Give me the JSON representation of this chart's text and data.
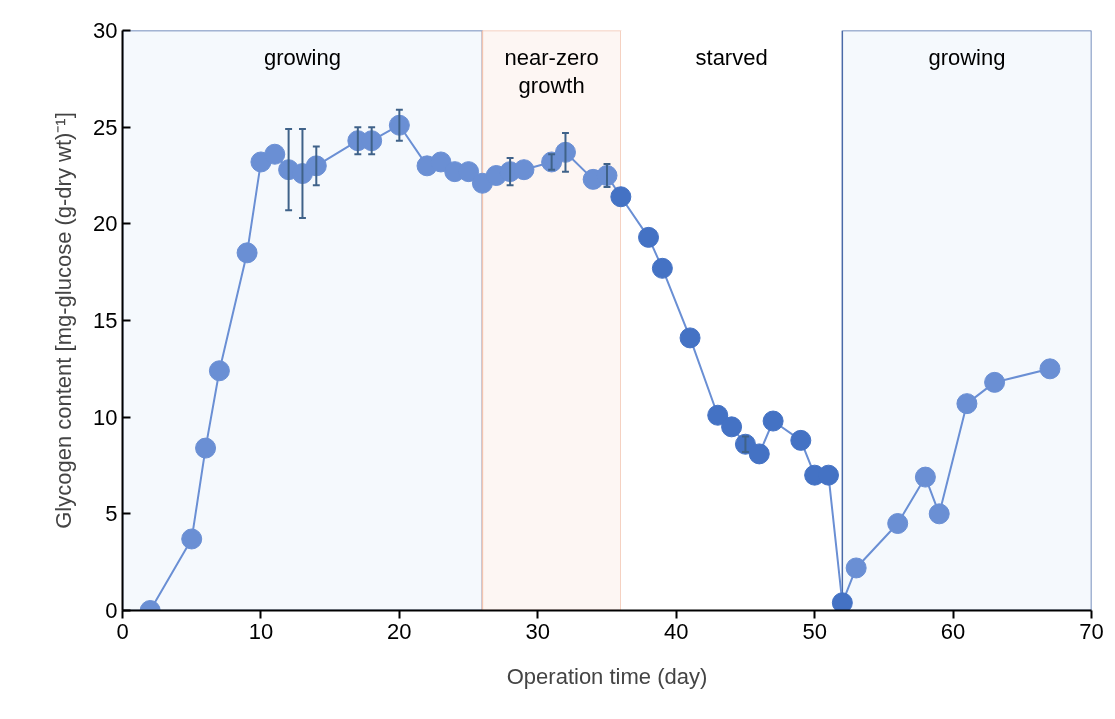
{
  "chart_data": {
    "type": "line",
    "xlabel": "Operation time (day)",
    "ylabel": "Glycogen content [mg-glucose (g-dry wt)⁻¹]",
    "xlim": [
      0,
      70
    ],
    "xticks": [
      0,
      10,
      20,
      30,
      40,
      50,
      60,
      70
    ],
    "ylim": [
      0,
      30
    ],
    "yticks": [
      0,
      5,
      10,
      15,
      20,
      25,
      30
    ],
    "marker": "circle",
    "line_style": "solid",
    "x": [
      2,
      5,
      6,
      7,
      9,
      10,
      11,
      12,
      13,
      14,
      17,
      18,
      20,
      22,
      23,
      24,
      25,
      26,
      27,
      28,
      29,
      31,
      32,
      34,
      35,
      36,
      38,
      39,
      41,
      43,
      44,
      45,
      46,
      47,
      49,
      50,
      51,
      52,
      53,
      56,
      58,
      59,
      61,
      63,
      67
    ],
    "series": [
      {
        "color": "#6a8fd4",
        "values": [
          0.0,
          3.7,
          8.4,
          12.4,
          18.5,
          23.2,
          23.6,
          22.8,
          22.6,
          23.0,
          24.3,
          24.3,
          25.1,
          23.0,
          23.2,
          22.7,
          22.7,
          22.1,
          22.5,
          22.7,
          22.8,
          23.2,
          23.7,
          22.3,
          22.5,
          21.4,
          19.3,
          17.7,
          14.1,
          10.1,
          9.5,
          8.6,
          8.1,
          9.8,
          8.8,
          7.0,
          7.0,
          0.4,
          2.2,
          4.5,
          6.9,
          5.0,
          10.7,
          11.8,
          12.5
        ],
        "colors": [
          "#6a8fd4",
          "#6a8fd4",
          "#6a8fd4",
          "#6a8fd4",
          "#6a8fd4",
          "#6a8fd4",
          "#6a8fd4",
          "#6a8fd4",
          "#6a8fd4",
          "#6a8fd4",
          "#6a8fd4",
          "#6a8fd4",
          "#6a8fd4",
          "#6a8fd4",
          "#6a8fd4",
          "#6a8fd4",
          "#6a8fd4",
          "#6a8fd4",
          "#6a8fd4",
          "#6a8fd4",
          "#6a8fd4",
          "#6a8fd4",
          "#6a8fd4",
          "#6a8fd4",
          "#6a8fd4",
          "#4472c4",
          "#4472c4",
          "#4472c4",
          "#4472c4",
          "#4472c4",
          "#4472c4",
          "#4472c4",
          "#4472c4",
          "#4472c4",
          "#4472c4",
          "#4472c4",
          "#4472c4",
          "#4472c4",
          "#6a8fd4",
          "#6a8fd4",
          "#6a8fd4",
          "#6a8fd4",
          "#6a8fd4",
          "#6a8fd4",
          "#6a8fd4"
        ],
        "errors": [
          null,
          null,
          null,
          null,
          null,
          null,
          null,
          2.1,
          2.3,
          1.0,
          0.7,
          0.7,
          0.8,
          null,
          null,
          null,
          null,
          null,
          null,
          0.7,
          null,
          0.4,
          1.0,
          null,
          0.6,
          null,
          null,
          null,
          null,
          null,
          null,
          0.4,
          null,
          null,
          null,
          null,
          null,
          null,
          null,
          null,
          null,
          null,
          null,
          null,
          null
        ]
      }
    ],
    "bands": [
      {
        "axis": "x",
        "from": 0,
        "to": 26,
        "label": "growing",
        "color": "#f5f9fd"
      },
      {
        "axis": "x",
        "from": 26,
        "to": 36,
        "label": "near-zero\ngrowth",
        "color": "#fdf6f3"
      },
      {
        "axis": "x",
        "from": 36,
        "to": 52,
        "label": "starved",
        "color": "#ffffff"
      },
      {
        "axis": "x",
        "from": 52,
        "to": 70,
        "label": "growing",
        "color": "#f5f9fd"
      }
    ]
  }
}
